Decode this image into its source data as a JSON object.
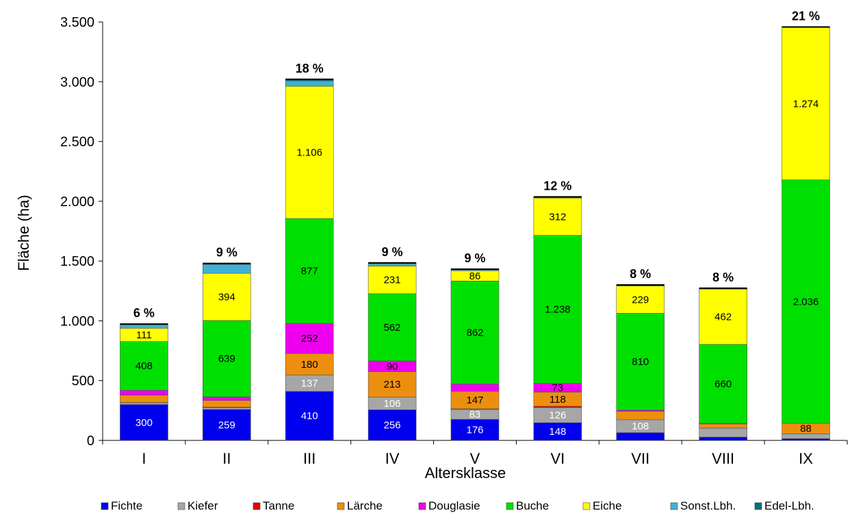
{
  "chart_data": {
    "type": "bar",
    "stacked": true,
    "title": "",
    "xlabel": "Altersklasse",
    "ylabel": "Fläche (ha)",
    "ylim": [
      0,
      3500
    ],
    "yticks": [
      0,
      500,
      1000,
      1500,
      2000,
      2500,
      3000,
      3500
    ],
    "ytick_labels": [
      "0",
      "500",
      "1.000",
      "1.500",
      "2.000",
      "2.500",
      "3.000",
      "3.500"
    ],
    "categories": [
      "I",
      "II",
      "III",
      "IV",
      "V",
      "VI",
      "VII",
      "VIII",
      "IX"
    ],
    "percent_labels": [
      "6 %",
      "9 %",
      "18 %",
      "9 %",
      "9 %",
      "12 %",
      "8 %",
      "8 %",
      "21 %"
    ],
    "grid": false,
    "legend_position": "bottom",
    "series": [
      {
        "name": "Fichte",
        "color": "#0000ee",
        "label_color": "#ffffff",
        "values": [
          300,
          259,
          410,
          256,
          176,
          148,
          65,
          28,
          15
        ],
        "labels": [
          "300",
          "259",
          "410",
          "256",
          "176",
          "148",
          "",
          "",
          ""
        ]
      },
      {
        "name": "Kiefer",
        "color": "#a6a6a6",
        "label_color": "#ffffff",
        "values": [
          15,
          15,
          137,
          106,
          83,
          126,
          108,
          75,
          40
        ],
        "labels": [
          "",
          "",
          "137",
          "106",
          "83",
          "126",
          "108",
          "",
          ""
        ]
      },
      {
        "name": "Tanne",
        "color": "#e60000",
        "label_color": "#000000",
        "values": [
          2,
          5,
          0,
          0,
          5,
          12,
          0,
          0,
          0
        ],
        "labels": [
          "",
          "",
          "",
          "",
          "",
          "",
          "",
          "",
          ""
        ]
      },
      {
        "name": "Lärche",
        "color": "#ed8f0e",
        "label_color": "#000000",
        "values": [
          62,
          55,
          180,
          213,
          147,
          118,
          70,
          35,
          88
        ],
        "labels": [
          "",
          "",
          "180",
          "213",
          "147",
          "118",
          "",
          "",
          "88"
        ]
      },
      {
        "name": "Douglasie",
        "color": "#ee00ee",
        "label_color": "#000000",
        "values": [
          40,
          30,
          252,
          90,
          60,
          73,
          10,
          5,
          0
        ],
        "labels": [
          "",
          "",
          "252",
          "90",
          "",
          "73",
          "",
          "",
          ""
        ]
      },
      {
        "name": "Buche",
        "color": "#00e000",
        "label_color": "#000000",
        "values": [
          408,
          639,
          877,
          562,
          862,
          1238,
          810,
          660,
          2036
        ],
        "labels": [
          "408",
          "639",
          "877",
          "562",
          "862",
          "1.238",
          "810",
          "660",
          "2.036"
        ]
      },
      {
        "name": "Eiche",
        "color": "#ffff00",
        "label_color": "#000000",
        "values": [
          111,
          394,
          1106,
          231,
          86,
          312,
          229,
          462,
          1274
        ],
        "labels": [
          "111",
          "394",
          "1.106",
          "231",
          "86",
          "312",
          "229",
          "462",
          "1.274"
        ]
      },
      {
        "name": "Sonst.Lbh.",
        "color": "#3fb1d4",
        "label_color": "#000000",
        "values": [
          30,
          75,
          45,
          20,
          8,
          0,
          0,
          0,
          0
        ],
        "labels": [
          "",
          "",
          "",
          "",
          "",
          "",
          "",
          "",
          ""
        ]
      },
      {
        "name": "Edel-Lbh.",
        "color": "#007080",
        "label_color": "#000000",
        "values": [
          5,
          8,
          13,
          7,
          5,
          10,
          8,
          8,
          5
        ],
        "labels": [
          "",
          "",
          "",
          "",
          "",
          "",
          "",
          "",
          ""
        ]
      }
    ]
  }
}
